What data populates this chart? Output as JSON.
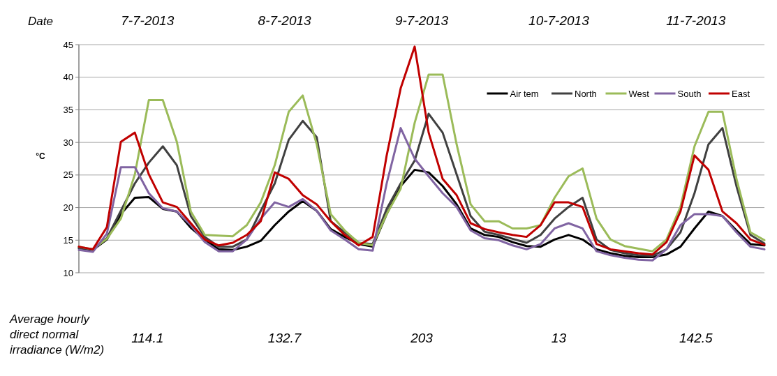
{
  "chart_data": {
    "type": "line",
    "ylabel": "°C",
    "ylim": [
      10,
      45
    ],
    "yticks": [
      10,
      15,
      20,
      25,
      30,
      35,
      40,
      45
    ],
    "grid": "y",
    "legend": "top right",
    "marker": "none",
    "line_style": "solid",
    "categories": [
      null,
      null,
      null,
      null,
      null,
      null,
      null,
      null,
      null,
      null,
      null,
      null,
      null,
      null,
      null,
      null,
      null,
      null,
      null,
      null,
      null,
      null,
      null,
      null,
      null,
      null,
      null,
      null,
      null,
      null,
      null,
      null,
      null,
      null,
      null,
      null,
      null,
      null,
      null,
      null,
      null,
      null,
      null,
      null,
      null,
      null,
      null,
      null,
      null,
      null
    ],
    "annotations": [
      "Date",
      "7-7-2013",
      "8-7-2013",
      "9-7-2013",
      "10-7-2013",
      "11-7-2013",
      "Average hourly direct normal irradiance (W/m2)",
      "114.1",
      "132.7",
      "203",
      "13",
      "142.5"
    ],
    "series": [
      {
        "name": "Air tem",
        "color": "#000000",
        "values": [
          13.8,
          13.5,
          15.1,
          19.0,
          21.5,
          21.6,
          19.8,
          19.4,
          16.9,
          15.1,
          13.6,
          13.5,
          14.0,
          14.9,
          17.3,
          19.4,
          21.0,
          19.5,
          16.7,
          15.5,
          14.4,
          14.0,
          19.0,
          23.3,
          25.8,
          25.4,
          23.3,
          20.5,
          16.8,
          15.8,
          15.5,
          14.7,
          14.1,
          14.0,
          15.1,
          15.8,
          15.1,
          13.6,
          13.0,
          12.6,
          12.4,
          12.4,
          12.8,
          14.0,
          16.8,
          19.4,
          18.7,
          16.5,
          14.4,
          14.2
        ]
      },
      {
        "name": "North",
        "color": "#404040",
        "values": [
          13.8,
          13.6,
          15.3,
          19.5,
          23.7,
          26.9,
          29.4,
          26.5,
          18.7,
          15.5,
          14.0,
          14.0,
          15.1,
          19.5,
          23.7,
          30.4,
          33.3,
          30.8,
          17.9,
          16.2,
          14.6,
          14.4,
          19.8,
          23.7,
          27.2,
          34.4,
          31.5,
          25.1,
          18.7,
          16.3,
          15.8,
          15.2,
          14.6,
          15.8,
          18.3,
          20.1,
          21.5,
          15.1,
          13.5,
          13.0,
          12.7,
          12.6,
          13.6,
          16.2,
          22.2,
          29.7,
          32.2,
          23.3,
          15.8,
          14.5
        ]
      },
      {
        "name": "West",
        "color": "#9bbb59",
        "values": [
          14.0,
          13.6,
          15.2,
          18.3,
          25.1,
          36.5,
          36.5,
          30.1,
          19.4,
          15.8,
          15.7,
          15.6,
          17.3,
          20.8,
          26.5,
          34.7,
          37.2,
          29.7,
          19.0,
          16.5,
          14.6,
          14.2,
          19.0,
          22.9,
          33.0,
          40.4,
          40.4,
          29.7,
          20.5,
          17.9,
          17.9,
          16.8,
          16.8,
          17.3,
          21.5,
          24.8,
          26.0,
          18.3,
          15.1,
          14.1,
          13.7,
          13.3,
          15.1,
          20.1,
          29.4,
          34.7,
          34.7,
          24.4,
          16.2,
          15.0
        ]
      },
      {
        "name": "South",
        "color": "#8064a2",
        "values": [
          13.5,
          13.2,
          16.0,
          26.2,
          26.2,
          22.2,
          19.9,
          19.4,
          17.3,
          14.7,
          13.3,
          13.3,
          15.1,
          18.3,
          20.8,
          20.1,
          21.3,
          19.5,
          16.5,
          15.1,
          13.6,
          13.4,
          23.7,
          32.2,
          27.5,
          24.8,
          22.2,
          20.1,
          16.5,
          15.3,
          15.0,
          14.2,
          13.6,
          14.4,
          16.8,
          17.6,
          16.8,
          13.3,
          12.7,
          12.3,
          12.0,
          11.9,
          13.6,
          17.3,
          19.0,
          19.0,
          18.7,
          16.2,
          14.0,
          13.6
        ]
      },
      {
        "name": "East",
        "color": "#c00000",
        "values": [
          14.0,
          13.6,
          17.0,
          30.1,
          31.5,
          25.1,
          20.8,
          20.1,
          17.6,
          15.1,
          14.2,
          14.6,
          15.8,
          17.9,
          25.4,
          24.4,
          21.9,
          20.5,
          17.9,
          15.8,
          14.2,
          15.5,
          28.0,
          38.3,
          44.7,
          31.5,
          24.4,
          21.9,
          17.6,
          16.7,
          16.2,
          15.8,
          15.5,
          17.3,
          20.8,
          20.8,
          20.1,
          14.4,
          13.6,
          13.3,
          13.0,
          12.8,
          14.7,
          19.4,
          28.0,
          25.8,
          19.4,
          17.6,
          15.1,
          14.3
        ]
      }
    ]
  }
}
